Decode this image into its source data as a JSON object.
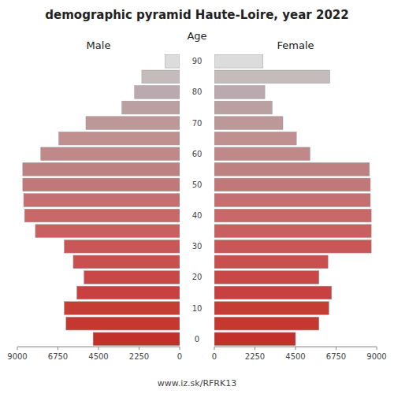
{
  "chart_data": {
    "type": "pyramid",
    "orientation": "horizontal",
    "title": "demographic pyramid Haute-Loire, year 2022",
    "y_label": "Age",
    "annotations": [
      "www.iz.sk/RFRK13"
    ],
    "categories": [
      "0",
      null,
      "10",
      null,
      "20",
      null,
      "30",
      null,
      "40",
      null,
      "50",
      null,
      "60",
      null,
      "70",
      null,
      "80",
      null,
      "90"
    ],
    "series": [
      {
        "name": "Male",
        "values": [
          4800,
          6300,
          6400,
          5700,
          5300,
          5900,
          6400,
          8000,
          8600,
          8650,
          8700,
          8700,
          7700,
          6700,
          5200,
          3200,
          2500,
          2100,
          800
        ]
      },
      {
        "name": "Female",
        "values": [
          4500,
          5800,
          6350,
          6500,
          5800,
          6300,
          8700,
          8700,
          8700,
          8650,
          8650,
          8600,
          5300,
          4550,
          3800,
          3200,
          2800,
          6400,
          2700
        ]
      }
    ],
    "colors": [
      "#c0312a",
      "#c43830",
      "#c63d34",
      "#c84040",
      "#c84848",
      "#ca5050",
      "#c85858",
      "#c96060",
      "#c86868",
      "#c47070",
      "#c07878",
      "#be8080",
      "#c08888",
      "#c09090",
      "#bc9898",
      "#baa0a0",
      "#baaab0",
      "#c4bcbc",
      "#dcdcdc"
    ],
    "xlim": [
      0,
      9000
    ],
    "xticks": [
      0,
      2250,
      4500,
      6750,
      9000
    ]
  }
}
